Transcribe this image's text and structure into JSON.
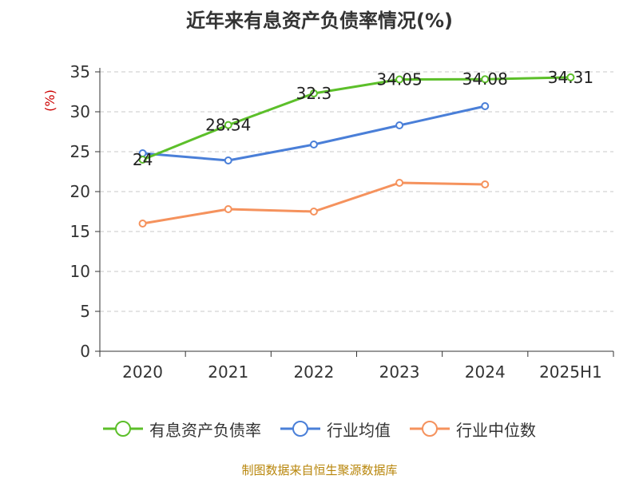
{
  "chart_data": {
    "type": "line",
    "title": "近年来有息资产负债率情况(%)",
    "xlabel": "",
    "ylabel": "(%)",
    "categories": [
      "2020",
      "2021",
      "2022",
      "2023",
      "2024",
      "2025H1"
    ],
    "ylim": [
      0,
      35
    ],
    "yticks": [
      0,
      5,
      10,
      15,
      20,
      25,
      30,
      35
    ],
    "grid": true,
    "legend_position": "bottom",
    "series": [
      {
        "name": "有息资产负债率",
        "color": "#5cbf2a",
        "show_labels": true,
        "values": [
          24,
          28.34,
          32.3,
          34.05,
          34.08,
          34.31
        ]
      },
      {
        "name": "行业均值",
        "color": "#4a7fd8",
        "show_labels": false,
        "values": [
          24.8,
          23.9,
          25.9,
          28.3,
          30.7,
          null
        ]
      },
      {
        "name": "行业中位数",
        "color": "#f5925d",
        "show_labels": false,
        "values": [
          16.0,
          17.8,
          17.5,
          21.1,
          20.9,
          null
        ]
      }
    ]
  },
  "source": "制图数据来自恒生聚源数据库"
}
